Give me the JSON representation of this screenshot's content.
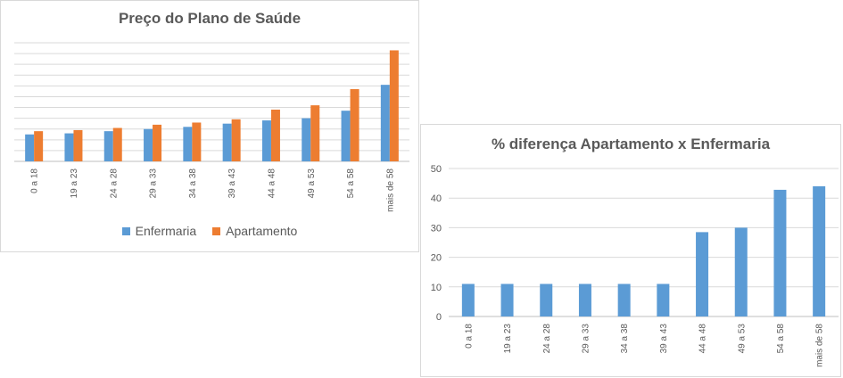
{
  "charts": [
    {
      "chart_data": {
        "type": "bar",
        "title": "Preço do Plano de Saúde",
        "categories": [
          "0 a 18",
          "19 a 23",
          "24 a 28",
          "29 a 33",
          "34 a 38",
          "39 a 43",
          "44 a 48",
          "49 a 53",
          "54 a 58",
          "mais de 58"
        ],
        "series": [
          {
            "name": "Enfermaria",
            "color": "#5b9bd5",
            "values": [
              2.5,
              2.6,
              2.8,
              3.0,
              3.2,
              3.5,
              3.8,
              4.0,
              4.7,
              7.1
            ]
          },
          {
            "name": "Apartamento",
            "color": "#ed7d31",
            "values": [
              2.8,
              2.9,
              3.1,
              3.4,
              3.6,
              3.9,
              4.8,
              5.2,
              6.7,
              10.3
            ]
          }
        ],
        "ylim": [
          0,
          11
        ],
        "grid": true,
        "y_tick_labels_shown": false,
        "legend_position": "bottom"
      }
    },
    {
      "chart_data": {
        "type": "bar",
        "title": "% diferença Apartamento x Enfermaria",
        "categories": [
          "0 a 18",
          "19 a 23",
          "24 a 28",
          "29 a 33",
          "34 a 38",
          "39 a 43",
          "44 a 48",
          "49 a 53",
          "54 a 58",
          "mais de 58"
        ],
        "series": [
          {
            "color": "#5b9bd5",
            "values": [
              11,
              11,
              11,
              11,
              11,
              11,
              28.5,
              30,
              42.8,
              44
            ]
          }
        ],
        "ylim": [
          0,
          50
        ],
        "yticks": [
          0,
          10,
          20,
          30,
          40,
          50
        ],
        "grid": true,
        "legend_position": "none"
      }
    }
  ]
}
